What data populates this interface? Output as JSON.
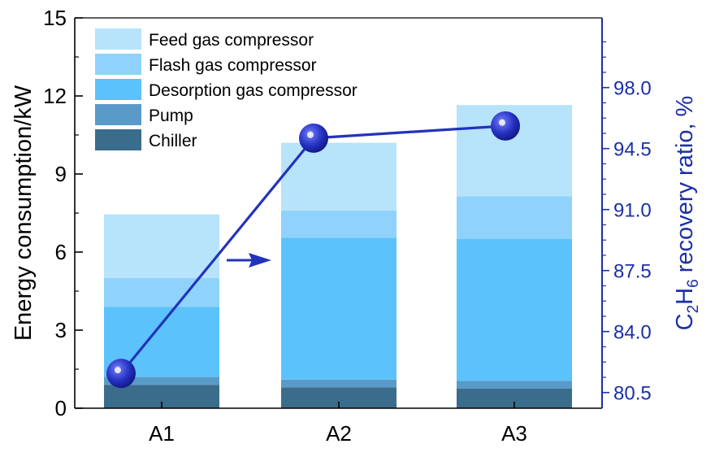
{
  "chart_data": {
    "type": "bar",
    "stacked": true,
    "categories": [
      "A1",
      "A2",
      "A3"
    ],
    "series": [
      {
        "name": "Chiller",
        "values": [
          0.9,
          0.8,
          0.75
        ],
        "color": "#3a6c8c"
      },
      {
        "name": "Pump",
        "values": [
          0.3,
          0.3,
          0.3
        ],
        "color": "#5a9ac8"
      },
      {
        "name": "Desorption gas compressor",
        "values": [
          2.7,
          5.45,
          5.45
        ],
        "color": "#5cc2fb"
      },
      {
        "name": "Flash gas compressor",
        "values": [
          1.1,
          1.05,
          1.65
        ],
        "color": "#8fd3fc"
      },
      {
        "name": "Feed gas compressor",
        "values": [
          2.45,
          2.6,
          3.5
        ],
        "color": "#b7e3fb"
      }
    ],
    "legend_order": [
      "Feed gas compressor",
      "Flash gas compressor",
      "Desorption gas compressor",
      "Pump",
      "Chiller"
    ],
    "legend_position": "top-left",
    "y_left": {
      "label": "Energy consumption/kW",
      "lim": [
        0,
        15
      ],
      "ticks": [
        "0",
        "3",
        "6",
        "9",
        "12",
        "15"
      ]
    },
    "y_right": {
      "label_main": "C",
      "label_sub1": "2",
      "label_mid": "H",
      "label_sub2": "6",
      "label_tail": " recovery ratio, %",
      "lim": [
        79.6,
        102
      ],
      "ticks": [
        "80.5",
        "84.0",
        "87.5",
        "91.0",
        "94.5",
        "98.0"
      ],
      "tick_values": [
        80.5,
        84.0,
        87.5,
        91.0,
        94.5,
        98.0
      ],
      "color": "#1b2fa8"
    },
    "recovery_line": {
      "name": "C2H6 recovery ratio",
      "values": [
        81.6,
        95.1,
        95.8
      ],
      "color": "#2233bb"
    },
    "annotation": {
      "type": "arrow",
      "points_to": "right axis",
      "color": "#2233bb"
    },
    "grid": false
  }
}
